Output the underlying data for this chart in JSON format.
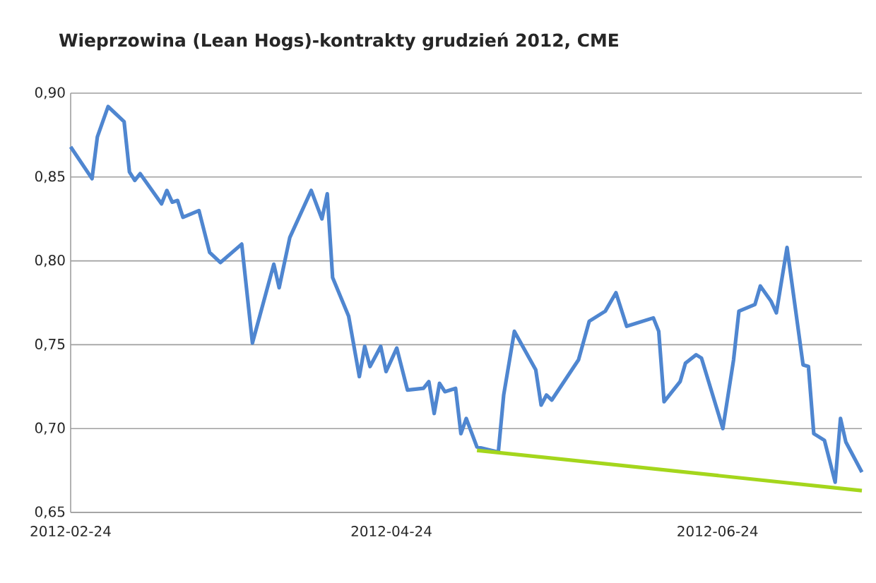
{
  "chart_data": {
    "type": "line",
    "title": "Wieprzowina (Lean Hogs)-kontrakty grudzień 2012, CME",
    "x": [
      "2012-02-24",
      "2012-02-28",
      "2012-02-29",
      "2012-03-02",
      "2012-03-05",
      "2012-03-06",
      "2012-03-07",
      "2012-03-08",
      "2012-03-12",
      "2012-03-13",
      "2012-03-14",
      "2012-03-15",
      "2012-03-16",
      "2012-03-19",
      "2012-03-21",
      "2012-03-23",
      "2012-03-27",
      "2012-03-29",
      "2012-04-02",
      "2012-04-03",
      "2012-04-05",
      "2012-04-09",
      "2012-04-11",
      "2012-04-12",
      "2012-04-13",
      "2012-04-16",
      "2012-04-18",
      "2012-04-19",
      "2012-04-20",
      "2012-04-22",
      "2012-04-23",
      "2012-04-25",
      "2012-04-27",
      "2012-04-30",
      "2012-05-01",
      "2012-05-02",
      "2012-05-03",
      "2012-05-04",
      "2012-05-06",
      "2012-05-07",
      "2012-05-08",
      "2012-05-10",
      "2012-05-14",
      "2012-05-15",
      "2012-05-17",
      "2012-05-21",
      "2012-05-22",
      "2012-05-23",
      "2012-05-24",
      "2012-05-29",
      "2012-05-31",
      "2012-06-03",
      "2012-06-05",
      "2012-06-07",
      "2012-06-12",
      "2012-06-13",
      "2012-06-14",
      "2012-06-17",
      "2012-06-18",
      "2012-06-20",
      "2012-06-21",
      "2012-06-25",
      "2012-06-27",
      "2012-06-28",
      "2012-07-01",
      "2012-07-02",
      "2012-07-04",
      "2012-07-05",
      "2012-07-07",
      "2012-07-10",
      "2012-07-11",
      "2012-07-12",
      "2012-07-14",
      "2012-07-16",
      "2012-07-17",
      "2012-07-18",
      "2012-07-21"
    ],
    "series": [
      {
        "color": "#4f86d0",
        "values": [
          0.868,
          0.849,
          0.874,
          0.892,
          0.883,
          0.853,
          0.848,
          0.852,
          0.834,
          0.842,
          0.835,
          0.836,
          0.826,
          0.83,
          0.805,
          0.799,
          0.81,
          0.751,
          0.798,
          0.784,
          0.814,
          0.842,
          0.825,
          0.84,
          0.79,
          0.767,
          0.731,
          0.749,
          0.737,
          0.749,
          0.734,
          0.748,
          0.723,
          0.724,
          0.728,
          0.709,
          0.727,
          0.722,
          0.724,
          0.697,
          0.706,
          0.689,
          0.686,
          0.72,
          0.758,
          0.735,
          0.714,
          0.72,
          0.717,
          0.741,
          0.764,
          0.77,
          0.781,
          0.761,
          0.766,
          0.758,
          0.716,
          0.728,
          0.739,
          0.744,
          0.742,
          0.7,
          0.741,
          0.77,
          0.774,
          0.785,
          0.776,
          0.769,
          0.808,
          0.738,
          0.737,
          0.697,
          0.693,
          0.668,
          0.706,
          0.692,
          0.674
        ]
      },
      {
        "type": "line",
        "color": "#a4d61c",
        "x": [
          "2012-05-10",
          "2012-07-21"
        ],
        "values": [
          0.687,
          0.663
        ]
      }
    ],
    "xlim": [
      "2012-02-24",
      "2012-07-21"
    ],
    "xticks": [
      "2012-02-24",
      "2012-04-24",
      "2012-06-24"
    ],
    "ylim": [
      0.65,
      0.9
    ],
    "yticks": [
      {
        "value": 0.65,
        "label": "0,65"
      },
      {
        "value": 0.7,
        "label": "0,70"
      },
      {
        "value": 0.75,
        "label": "0,75"
      },
      {
        "value": 0.8,
        "label": "0,80"
      },
      {
        "value": 0.85,
        "label": "0,85"
      },
      {
        "value": 0.9,
        "label": "0,90"
      }
    ],
    "grid": "y"
  }
}
